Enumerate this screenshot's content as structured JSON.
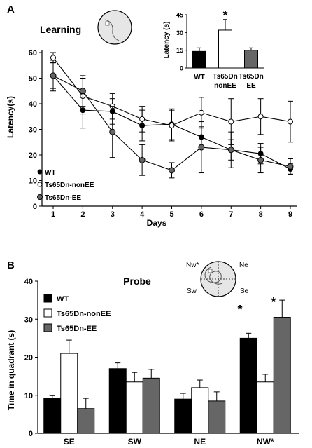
{
  "panel_labels": {
    "a": "A",
    "b": "B"
  },
  "maze_labels": {
    "nw": "Nw*",
    "ne": "Ne",
    "sw": "Sw",
    "se": "Se"
  },
  "colors": {
    "wt": "#000000",
    "nonee": "#ffffff",
    "ee": "#666666"
  },
  "chart_data": [
    {
      "id": "learning",
      "type": "line",
      "title": "Learning",
      "xlabel": "Days",
      "ylabel": "Latency(s)",
      "x": [
        1,
        2,
        3,
        4,
        5,
        6,
        7,
        8,
        9
      ],
      "xlim": [
        0.5,
        9.5
      ],
      "ylim": [
        0,
        60
      ],
      "yticks": [
        0,
        10,
        20,
        30,
        40,
        50,
        60
      ],
      "legend_position": "bottom-left",
      "series": [
        {
          "name": "WT",
          "values": [
            51,
            37.5,
            37,
            31.5,
            32,
            27,
            22,
            20.5,
            14.5
          ],
          "errors": [
            5,
            7,
            5,
            6,
            6,
            4,
            4,
            4,
            2
          ]
        },
        {
          "name": "Ts65Dn-nonEE",
          "values": [
            58,
            43,
            39,
            34,
            31.5,
            36.5,
            33,
            35,
            33
          ],
          "errors": [
            2,
            7,
            5,
            5,
            6,
            6,
            9,
            7,
            8
          ]
        },
        {
          "name": "Ts65Dn-EE",
          "values": [
            51,
            45,
            29,
            18,
            14,
            23,
            22,
            18,
            15.5
          ],
          "errors": [
            6,
            6,
            10,
            6,
            3,
            10,
            7,
            5,
            3
          ]
        }
      ]
    },
    {
      "id": "learning-inset",
      "type": "bar",
      "ylabel": "Latency (s)",
      "categories": [
        "WT",
        "Ts65Dn nonEE",
        "Ts65Dn EE"
      ],
      "ylim": [
        0,
        45
      ],
      "yticks": [
        0,
        15,
        30,
        45
      ],
      "values": [
        14,
        32,
        15
      ],
      "errors": [
        3,
        9,
        2
      ],
      "annotations": [
        {
          "category": "Ts65Dn nonEE",
          "text": "*"
        }
      ]
    },
    {
      "id": "probe",
      "type": "bar",
      "title": "Probe",
      "ylabel": "Time in quadrant (s)",
      "categories": [
        "SE",
        "SW",
        "NE",
        "NW*"
      ],
      "ylim": [
        0,
        40
      ],
      "yticks": [
        0,
        10,
        20,
        30,
        40
      ],
      "legend_position": "top-left",
      "series": [
        {
          "name": "WT",
          "values": [
            9.3,
            17,
            9,
            25
          ],
          "errors": [
            0.6,
            1.5,
            1.5,
            1.3
          ]
        },
        {
          "name": "Ts65Dn-nonEE",
          "values": [
            21,
            13.5,
            12,
            13.5
          ],
          "errors": [
            3.5,
            2.5,
            2,
            2
          ]
        },
        {
          "name": "Ts65Dn-EE",
          "values": [
            6.5,
            14.5,
            8.5,
            30.5
          ],
          "errors": [
            2.7,
            2.3,
            2.4,
            4.5
          ]
        }
      ],
      "annotations": [
        {
          "category": "NW*",
          "series": "WT",
          "text": "*"
        },
        {
          "category": "NW*",
          "series": "Ts65Dn-EE",
          "text": "*"
        }
      ]
    }
  ]
}
